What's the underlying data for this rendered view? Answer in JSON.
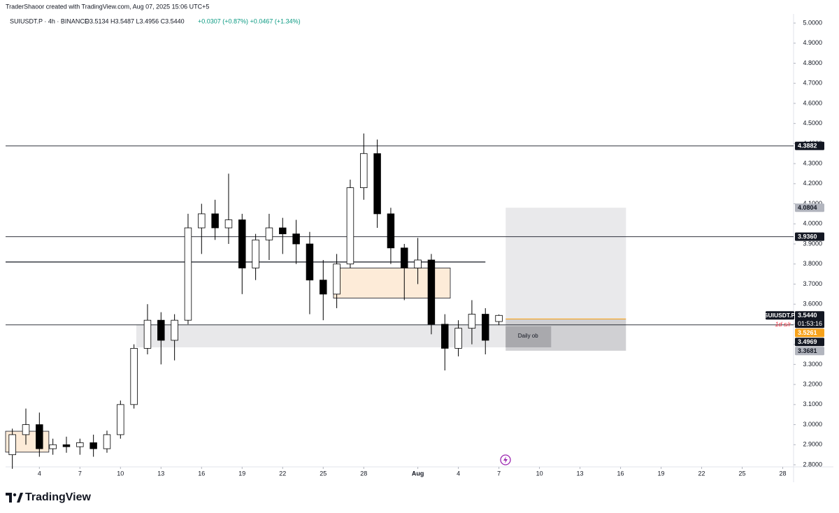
{
  "chart_data": {
    "type": "candlestick",
    "attribution": "TraderShaoor created with TradingView.com, Aug 07, 2025 15:06 UTC+5",
    "legend_text": "SUIUSDT.P · 4h · BINANCE",
    "ohlc_text": "O3.5134 H3.5487 L3.4956 C3.5440",
    "change_text": "+0.0307 (+0.87%)  +0.0467 (+1.34%)",
    "brand": "TradingView",
    "symbol": "SUIUSDT.P",
    "countdown": "01:53:16",
    "last_price": {
      "value": 3.544,
      "label": "3.5440"
    },
    "x": [
      1,
      2,
      3,
      4,
      5,
      6,
      7,
      8,
      9,
      10,
      11,
      12,
      13,
      14,
      15,
      16,
      17,
      18,
      19,
      20,
      21,
      22,
      23,
      24,
      25,
      26,
      27,
      28,
      29,
      30,
      31,
      32,
      33,
      34,
      35,
      36,
      37
    ],
    "open": [
      2.85,
      2.95,
      3.0,
      2.88,
      2.9,
      2.89,
      2.91,
      2.88,
      2.95,
      3.1,
      3.38,
      3.52,
      3.42,
      3.52,
      3.98,
      4.05,
      3.98,
      4.02,
      3.78,
      3.92,
      3.98,
      3.95,
      3.9,
      3.72,
      3.65,
      3.8,
      4.18,
      4.35,
      4.05,
      3.88,
      3.78,
      3.82,
      3.5,
      3.38,
      3.48,
      3.55,
      3.5134
    ],
    "high": [
      2.98,
      3.08,
      3.06,
      2.93,
      2.94,
      2.93,
      2.95,
      2.97,
      3.12,
      3.4,
      3.6,
      3.56,
      3.55,
      4.05,
      4.1,
      4.12,
      4.25,
      4.05,
      3.95,
      4.05,
      4.03,
      4.02,
      3.96,
      3.82,
      3.85,
      4.22,
      4.45,
      4.42,
      4.08,
      3.9,
      3.93,
      3.85,
      3.55,
      3.52,
      3.62,
      3.58,
      3.5487
    ],
    "low": [
      2.78,
      2.9,
      2.84,
      2.85,
      2.86,
      2.85,
      2.84,
      2.86,
      2.93,
      3.08,
      3.35,
      3.3,
      3.32,
      3.5,
      3.85,
      3.92,
      3.9,
      3.65,
      3.72,
      3.82,
      3.85,
      3.8,
      3.55,
      3.52,
      3.58,
      3.78,
      4.12,
      3.98,
      3.8,
      3.62,
      3.7,
      3.45,
      3.27,
      3.34,
      3.4,
      3.35,
      3.4956
    ],
    "close": [
      2.95,
      3.0,
      2.88,
      2.9,
      2.89,
      2.91,
      2.88,
      2.95,
      3.1,
      3.38,
      3.52,
      3.42,
      3.52,
      3.98,
      4.05,
      3.98,
      4.02,
      3.78,
      3.92,
      3.98,
      3.95,
      3.9,
      3.72,
      3.65,
      3.8,
      4.18,
      4.35,
      4.05,
      3.88,
      3.78,
      3.82,
      3.5,
      3.38,
      3.48,
      3.55,
      3.42,
      3.544
    ],
    "up_color": "#ffffff",
    "down_color": "#000000",
    "xlim": [
      0.5,
      58.8
    ],
    "xticks": [
      {
        "value": 3,
        "label": "4"
      },
      {
        "value": 6,
        "label": "7"
      },
      {
        "value": 9,
        "label": "10"
      },
      {
        "value": 12,
        "label": "13"
      },
      {
        "value": 15,
        "label": "16"
      },
      {
        "value": 18,
        "label": "19"
      },
      {
        "value": 21,
        "label": "22"
      },
      {
        "value": 24,
        "label": "25"
      },
      {
        "value": 27,
        "label": "28"
      },
      {
        "value": 31,
        "label": "Aug"
      },
      {
        "value": 34,
        "label": "4"
      },
      {
        "value": 37,
        "label": "7"
      },
      {
        "value": 40,
        "label": "10"
      },
      {
        "value": 43,
        "label": "13"
      },
      {
        "value": 46,
        "label": "16"
      },
      {
        "value": 49,
        "label": "19"
      },
      {
        "value": 52,
        "label": "22"
      },
      {
        "value": 55,
        "label": "25"
      },
      {
        "value": 58,
        "label": "28"
      }
    ],
    "ylim": [
      2.7896,
      5.0453
    ],
    "yticks": [
      {
        "value": 2.8,
        "label": "2.8000"
      },
      {
        "value": 2.9,
        "label": "2.9000"
      },
      {
        "value": 3.0,
        "label": "3.0000"
      },
      {
        "value": 3.1,
        "label": "3.1000"
      },
      {
        "value": 3.2,
        "label": "3.2000"
      },
      {
        "value": 3.3,
        "label": "3.3000"
      },
      {
        "value": 3.4,
        "label": "3.4000"
      },
      {
        "value": 3.5,
        "label": "3.5000"
      },
      {
        "value": 3.6,
        "label": "3.6000"
      },
      {
        "value": 3.7,
        "label": "3.7000"
      },
      {
        "value": 3.8,
        "label": "3.8000"
      },
      {
        "value": 3.9,
        "label": "3.9000"
      },
      {
        "value": 4.0,
        "label": "4.0000"
      },
      {
        "value": 4.1,
        "label": "4.1000"
      },
      {
        "value": 4.2,
        "label": "4.2000"
      },
      {
        "value": 4.3,
        "label": "4.3000"
      },
      {
        "value": 4.4,
        "label": "4.4000"
      },
      {
        "value": 4.5,
        "label": "4.5000"
      },
      {
        "value": 4.6,
        "label": "4.6000"
      },
      {
        "value": 4.7,
        "label": "4.7000"
      },
      {
        "value": 4.8,
        "label": "4.8000"
      },
      {
        "value": 4.9,
        "label": "4.9000"
      },
      {
        "value": 5.0,
        "label": "5.0000"
      }
    ],
    "levels": [
      {
        "value": 4.3882
      },
      {
        "value": 3.936,
        "label": "3.9360"
      },
      {
        "value": 3.81,
        "x_end": 36
      },
      {
        "value": 3.4969,
        "note": "1d s/r"
      }
    ],
    "zones": [
      {
        "x": [
          24.76,
          33.4
        ],
        "y": [
          3.63,
          3.78
        ],
        "color": "#fdebd8"
      },
      {
        "x": [
          0.5,
          3.7
        ],
        "y": [
          2.863,
          2.967
        ],
        "color": "#fdebd8"
      },
      {
        "x": [
          10.17,
          37.5
        ],
        "y": [
          3.385,
          3.4969
        ],
        "color": "#e8e8ea",
        "label": "Daily ob"
      }
    ],
    "position": {
      "x": [
        37.5,
        46.4
      ],
      "entry": 3.5261,
      "target": 4.0804,
      "stop": 3.3681,
      "entry_color": "#f7a21b"
    }
  }
}
